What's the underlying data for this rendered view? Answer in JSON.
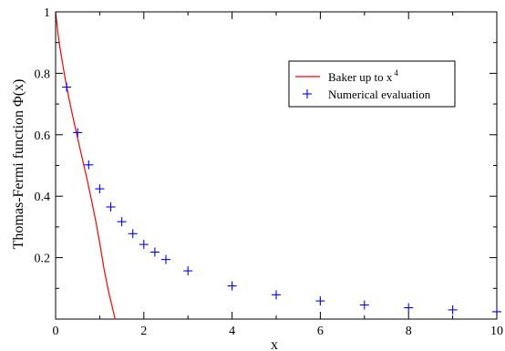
{
  "chart_data": {
    "type": "line",
    "xlabel": "x",
    "ylabel": "Thomas-Fermi function Φ(x)",
    "xlim": [
      0,
      10
    ],
    "ylim": [
      0,
      1
    ],
    "x_ticks": [
      0,
      2,
      4,
      6,
      8,
      10
    ],
    "y_ticks": [
      0.2,
      0.4,
      0.6,
      0.8,
      1
    ],
    "x_tick_labels": [
      "0",
      "2",
      "4",
      "6",
      "8",
      "10"
    ],
    "y_tick_labels": [
      "0.2",
      "0.4",
      "0.6",
      "0.8",
      "1"
    ],
    "grid": false,
    "legend_position": "top-right",
    "colors": {
      "curve": "#ff0000",
      "points": "#0000ff"
    },
    "series": [
      {
        "name": "Baker up to x",
        "name_superscript": "4",
        "kind": "line",
        "x": [
          0,
          0.05,
          0.1,
          0.2,
          0.3,
          0.4,
          0.5,
          0.6,
          0.7,
          0.8,
          0.9,
          1.0,
          1.1,
          1.2,
          1.3,
          1.35
        ],
        "y": [
          1.0,
          0.935,
          0.883,
          0.796,
          0.72,
          0.652,
          0.588,
          0.526,
          0.463,
          0.397,
          0.326,
          0.248,
          0.162,
          0.09,
          0.03,
          0.0
        ]
      },
      {
        "name": "Numerical evaluation",
        "kind": "scatter",
        "marker": "+",
        "x": [
          0.25,
          0.5,
          0.75,
          1.0,
          1.25,
          1.5,
          1.75,
          2.0,
          2.25,
          2.5,
          3.0,
          4.0,
          5.0,
          6.0,
          7.0,
          8.0,
          9.0,
          10.0
        ],
        "y": [
          0.755,
          0.607,
          0.502,
          0.424,
          0.365,
          0.317,
          0.278,
          0.243,
          0.218,
          0.194,
          0.157,
          0.108,
          0.079,
          0.059,
          0.046,
          0.037,
          0.03,
          0.024
        ]
      }
    ]
  }
}
